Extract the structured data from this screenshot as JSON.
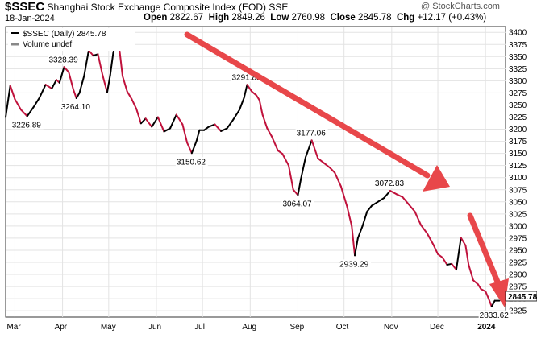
{
  "header": {
    "symbol": "$SSEC",
    "name": "Shanghai Stock Exchange Composite Index (EOD)",
    "exchange": "SSE",
    "copyright": "@ StockCharts.com",
    "date": "18-Jan-2024",
    "open_label": "Open",
    "open": "2822.67",
    "high_label": "High",
    "high": "2849.26",
    "low_label": "Low",
    "low": "2760.98",
    "close_label": "Close",
    "close": "2845.78",
    "chg_label": "Chg",
    "chg": "+12.17 (+0.43%)"
  },
  "legend": {
    "series": "$SSEC (Daily) 2845.78",
    "volume": "Volume undef"
  },
  "colors": {
    "up": "#000000",
    "down": "#c0123c",
    "arrow": "#e8474a",
    "grid": "#e3e3e3"
  },
  "chart_data": {
    "type": "line",
    "ylim": [
      2812,
      3412
    ],
    "y_ticks": [
      3400,
      3375,
      3350,
      3325,
      3300,
      3275,
      3250,
      3225,
      3200,
      3175,
      3150,
      3125,
      3100,
      3075,
      3050,
      3025,
      3000,
      2975,
      2950,
      2925,
      2900,
      2875,
      2850,
      2825
    ],
    "last_value_label": "2845.78",
    "x_ticks": [
      {
        "label": "Mar",
        "day": 6
      },
      {
        "label": "Apr",
        "day": 37
      },
      {
        "label": "May",
        "day": 67
      },
      {
        "label": "Jun",
        "day": 98
      },
      {
        "label": "Jul",
        "day": 128
      },
      {
        "label": "Aug",
        "day": 159
      },
      {
        "label": "Sep",
        "day": 190
      },
      {
        "label": "Oct",
        "day": 220
      },
      {
        "label": "Nov",
        "day": 251
      },
      {
        "label": "Dec",
        "day": 281
      },
      {
        "label": "2024",
        "day": 312
      }
    ],
    "series": [
      {
        "x": [
          0,
          3,
          6,
          10,
          14,
          18,
          22,
          26,
          30,
          33,
          35,
          38,
          41,
          44,
          46,
          48,
          51,
          54,
          57,
          60,
          63,
          66,
          68,
          70,
          73,
          76,
          79,
          82,
          85,
          88,
          91,
          95,
          99,
          103,
          107,
          111,
          115,
          118,
          121,
          124,
          126,
          129,
          132,
          136,
          140,
          144,
          148,
          152,
          155,
          157,
          160,
          163,
          165,
          167,
          170,
          173,
          177,
          180,
          184,
          187,
          190,
          192,
          195,
          199,
          203,
          207,
          211,
          214,
          218,
          222,
          225,
          227,
          229,
          232,
          235,
          238,
          242,
          246,
          250,
          254,
          258,
          262,
          266,
          270,
          274,
          278,
          281,
          284,
          287,
          290,
          293,
          296,
          299,
          301,
          304,
          307,
          309,
          312,
          314,
          316,
          318,
          321
        ],
        "y": [
          3225,
          3290,
          3262,
          3240,
          3226.89,
          3245,
          3265,
          3292,
          3284,
          3302,
          3296,
          3328.39,
          3318,
          3282,
          3264.1,
          3275,
          3310,
          3363,
          3352,
          3355,
          3312,
          3276,
          3312,
          3359,
          3392,
          3310,
          3278,
          3262,
          3242,
          3212,
          3222,
          3205,
          3225,
          3195,
          3202,
          3230,
          3210,
          3172,
          3150.62,
          3175,
          3198,
          3198,
          3205,
          3210,
          3196,
          3202,
          3220,
          3240,
          3265,
          3291.83,
          3278,
          3270,
          3260,
          3230,
          3202,
          3185,
          3156,
          3149,
          3125,
          3075,
          3064.07,
          3098,
          3142,
          3177.06,
          3140,
          3130,
          3120,
          3110,
          3082,
          3040,
          3000,
          2939.29,
          2975,
          3000,
          3030,
          3042,
          3050,
          3058,
          3072.83,
          3066,
          3060,
          3045,
          3030,
          3002,
          2985,
          2962,
          2942,
          2935,
          2920,
          2922,
          2910,
          2976,
          2960,
          2920,
          2888,
          2880,
          2870,
          2865,
          2850,
          2833.62,
          2845.78,
          2845.78
        ]
      }
    ],
    "annotations": [
      {
        "text": "3328.39",
        "day": 38,
        "value": 3328.39,
        "pos": "above"
      },
      {
        "text": "3226.89",
        "day": 14,
        "value": 3226.89,
        "pos": "below"
      },
      {
        "text": "3264.10",
        "day": 46,
        "value": 3264.1,
        "pos": "below"
      },
      {
        "text": "3291.83",
        "day": 157,
        "value": 3291.83,
        "pos": "above"
      },
      {
        "text": "3150.62",
        "day": 121,
        "value": 3150.62,
        "pos": "below"
      },
      {
        "text": "3177.06",
        "day": 199,
        "value": 3177.06,
        "pos": "above"
      },
      {
        "text": "3064.07",
        "day": 190,
        "value": 3064.07,
        "pos": "below"
      },
      {
        "text": "3072.83",
        "day": 250,
        "value": 3072.83,
        "pos": "above"
      },
      {
        "text": "2939.29",
        "day": 227,
        "value": 2939.29,
        "pos": "below"
      },
      {
        "text": "2833.62",
        "day": 318,
        "value": 2833.62,
        "pos": "below"
      }
    ]
  }
}
